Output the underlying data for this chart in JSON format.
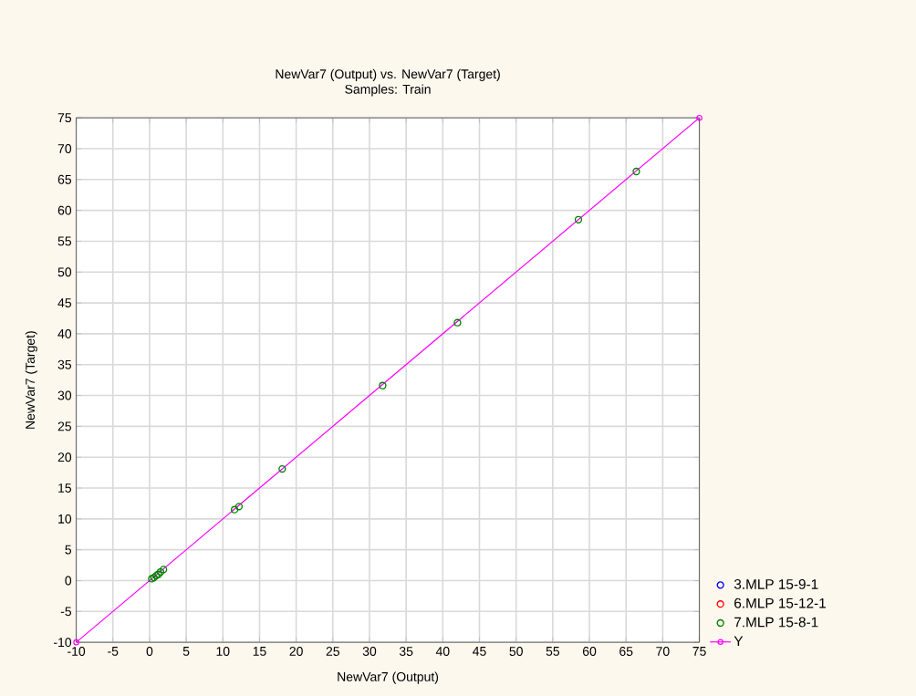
{
  "chart_data": {
    "type": "scatter",
    "title": "NewVar7 (Output) vs. NewVar7 (Target)",
    "subtitle": "Samples: Train",
    "xlabel": "NewVar7 (Output)",
    "ylabel": "NewVar7 (Target)",
    "series": [
      {
        "name": "3.MLP 15-9-1",
        "color": "#0000ff"
      },
      {
        "name": "6.MLP 15-12-1",
        "color": "#ff0000"
      },
      {
        "name": "7.MLP 15-8-1",
        "color": "#008000",
        "x": [
          66.4,
          58.5,
          42.0,
          31.8,
          18.1,
          12.2,
          11.6,
          1.9,
          1.5,
          1.2,
          0.9,
          0.6,
          0.3
        ],
        "values": [
          66.3,
          58.5,
          41.8,
          31.6,
          18.1,
          12.0,
          11.5,
          1.8,
          1.4,
          1.0,
          0.8,
          0.5,
          0.3
        ]
      },
      {
        "name": "Y",
        "type": "line",
        "color": "#ff00ff",
        "x": [
          -10,
          75
        ],
        "values": [
          -10,
          75
        ]
      }
    ],
    "xlim": [
      -10,
      75
    ],
    "ylim": [
      -10,
      75
    ],
    "xticks": [
      -10,
      -5,
      0,
      5,
      10,
      15,
      20,
      25,
      30,
      35,
      40,
      45,
      50,
      55,
      60,
      65,
      70,
      75
    ],
    "yticks": [
      -10,
      -5,
      0,
      5,
      10,
      15,
      20,
      25,
      30,
      35,
      40,
      45,
      50,
      55,
      60,
      65,
      70,
      75
    ],
    "grid": true,
    "legend": "bottom right",
    "marker": "circle",
    "line_style": "solid"
  }
}
